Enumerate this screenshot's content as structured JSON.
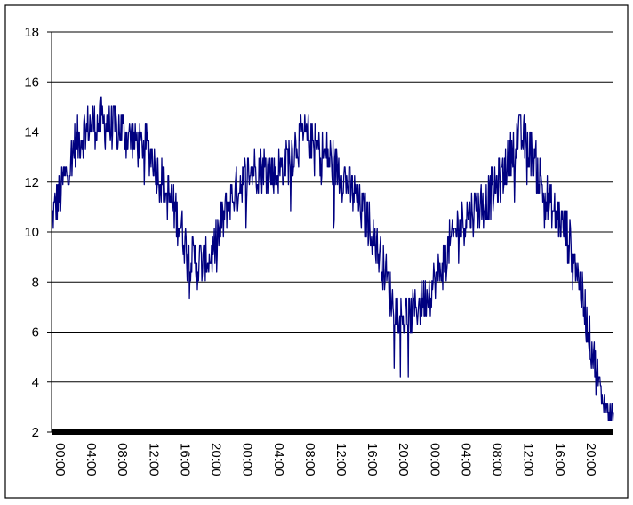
{
  "chart_data": {
    "type": "line",
    "title": "",
    "xlabel": "",
    "ylabel": "",
    "ylim": [
      2,
      18
    ],
    "y_ticks": [
      "2",
      "4",
      "6",
      "8",
      "10",
      "12",
      "14",
      "16",
      "18"
    ],
    "x_ticks": [
      "00:00",
      "04:00",
      "08:00",
      "12:00",
      "16:00",
      "20:00",
      "00:00",
      "04:00",
      "08:00",
      "12:00",
      "16:00",
      "20:00",
      "00:00",
      "04:00",
      "08:00",
      "12:00",
      "16:00",
      "20:00"
    ],
    "grid": "horizontal",
    "legend": "none",
    "series_color": "#000080",
    "x_hours": [
      0,
      1,
      2,
      3,
      4,
      5,
      6,
      7,
      8,
      9,
      10,
      11,
      12,
      13,
      14,
      15,
      16,
      17,
      18,
      19,
      20,
      21,
      22,
      23,
      24,
      25,
      26,
      27,
      28,
      29,
      30,
      31,
      32,
      33,
      34,
      35,
      36,
      37,
      38,
      39,
      40,
      41,
      42,
      43,
      44,
      45,
      46,
      47,
      48,
      49,
      50,
      51,
      52,
      53,
      54,
      55,
      56,
      57,
      58,
      59,
      60,
      61,
      62,
      63,
      64,
      65,
      66,
      67,
      68,
      69,
      70,
      71
    ],
    "values": [
      10.5,
      11.5,
      12.5,
      13.5,
      14.0,
      14.3,
      14.4,
      14.3,
      14.2,
      14.0,
      13.8,
      13.5,
      13.5,
      12.8,
      12.0,
      11.3,
      10.5,
      9.5,
      8.8,
      8.7,
      9.0,
      9.8,
      10.8,
      11.5,
      12.0,
      12.4,
      12.6,
      12.6,
      12.3,
      12.5,
      13.0,
      13.6,
      13.8,
      13.6,
      13.2,
      13.0,
      12.6,
      12.2,
      11.6,
      11.0,
      10.4,
      9.5,
      8.6,
      7.3,
      6.7,
      6.6,
      7.0,
      7.3,
      7.8,
      8.4,
      9.2,
      10.0,
      10.5,
      10.8,
      11.0,
      11.3,
      11.7,
      12.3,
      13.2,
      13.9,
      13.6,
      12.8,
      11.8,
      11.0,
      10.6,
      10.0,
      9.2,
      7.5,
      5.8,
      4.2,
      3.0,
      2.7
    ]
  }
}
